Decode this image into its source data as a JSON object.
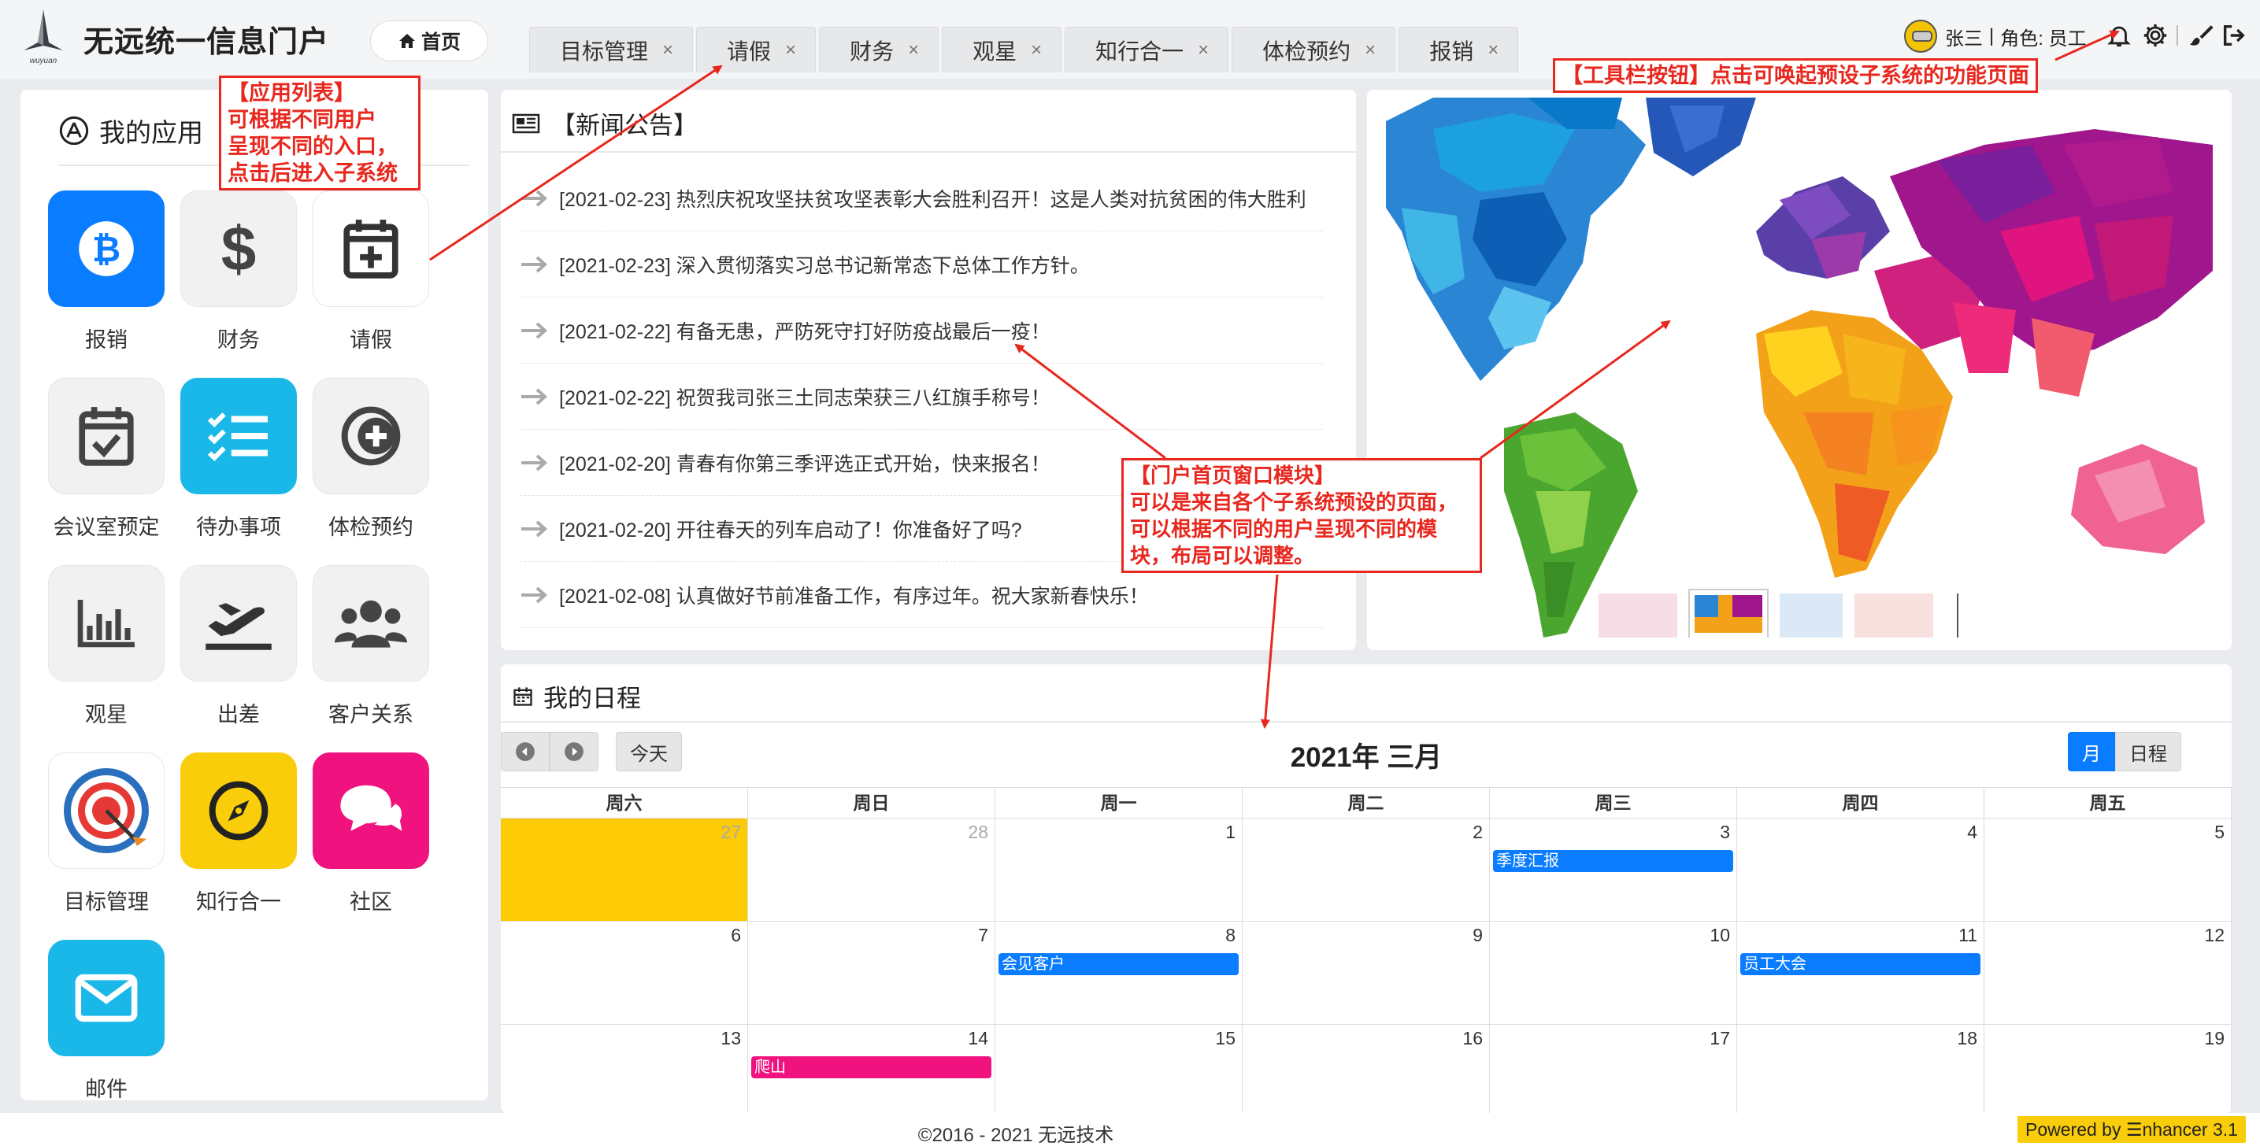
{
  "app": {
    "title": "无远统一信息门户",
    "logo_text": "wuyuan"
  },
  "home_button": {
    "label": "首页"
  },
  "tabs": [
    {
      "label": "目标管理"
    },
    {
      "label": "请假"
    },
    {
      "label": "财务"
    },
    {
      "label": "观星"
    },
    {
      "label": "知行合一"
    },
    {
      "label": "体检预约"
    },
    {
      "label": "报销"
    }
  ],
  "tab_close": "×",
  "user": {
    "name": "张三",
    "separator": "|",
    "role": "角色: 员工"
  },
  "toolbar_icons": [
    "bell-icon",
    "gear-icon",
    "brush-icon",
    "logout-icon"
  ],
  "apps_panel": {
    "title": "我的应用",
    "items": [
      {
        "label": "报销",
        "icon": "bitcoin-icon",
        "bg": "#0a7cff"
      },
      {
        "label": "财务",
        "icon": "dollar-icon",
        "bg": "#f1f1f1"
      },
      {
        "label": "请假",
        "icon": "calendar-plus-icon",
        "bg": "#ffffff"
      },
      {
        "label": "会议室预定",
        "icon": "calendar-check-icon",
        "bg": "#f1f1f1"
      },
      {
        "label": "待办事项",
        "icon": "checklist-icon",
        "bg": "#1ab8e8"
      },
      {
        "label": "体检预约",
        "icon": "medical-icon",
        "bg": "#f1f1f1"
      },
      {
        "label": "观星",
        "icon": "bar-chart-icon",
        "bg": "#f1f1f1"
      },
      {
        "label": "出差",
        "icon": "plane-icon",
        "bg": "#f1f1f1"
      },
      {
        "label": "客户关系",
        "icon": "users-icon",
        "bg": "#f1f1f1"
      },
      {
        "label": "目标管理",
        "icon": "target-icon",
        "bg": "#ffffff"
      },
      {
        "label": "知行合一",
        "icon": "compass-icon",
        "bg": "#f9cd0a"
      },
      {
        "label": "社区",
        "icon": "chat-icon",
        "bg": "#f0137f"
      },
      {
        "label": "邮件",
        "icon": "mail-icon",
        "bg": "#1ab8e8"
      }
    ]
  },
  "news": {
    "title": "【新闻公告】",
    "items": [
      "[2021-02-23] 热烈庆祝攻坚扶贫攻坚表彰大会胜利召开！这是人类对抗贫困的伟大胜利",
      "[2021-02-23] 深入贯彻落实习总书记新常态下总体工作方针。",
      "[2021-02-22] 有备无患，严防死守打好防疫战最后一疫！",
      "[2021-02-22] 祝贺我司张三土同志荣获三八红旗手称号！",
      "[2021-02-20] 青春有你第三季评选正式开始，快来报名！",
      "[2021-02-20] 开往春天的列车启动了！你准备好了吗?",
      "[2021-02-08] 认真做好节前准备工作，有序过年。祝大家新春快乐！"
    ]
  },
  "schedule": {
    "title": "我的日程",
    "today_label": "今天",
    "calendar_title": "2021年 三月",
    "view_month": "月",
    "view_agenda": "日程",
    "weekdays": [
      "周六",
      "周日",
      "周一",
      "周二",
      "周三",
      "周四",
      "周五"
    ],
    "weeks": [
      [
        {
          "d": "27",
          "other": true,
          "today": true
        },
        {
          "d": "28",
          "other": true
        },
        {
          "d": "1"
        },
        {
          "d": "2"
        },
        {
          "d": "3",
          "event": "季度汇报",
          "color": "#0a7cff"
        },
        {
          "d": "4"
        },
        {
          "d": "5"
        }
      ],
      [
        {
          "d": "6"
        },
        {
          "d": "7"
        },
        {
          "d": "8",
          "event": "会见客户",
          "color": "#0a7cff"
        },
        {
          "d": "9"
        },
        {
          "d": "10"
        },
        {
          "d": "11",
          "event": "员工大会",
          "color": "#0a7cff"
        },
        {
          "d": "12"
        }
      ],
      [
        {
          "d": "13"
        },
        {
          "d": "14",
          "event": "爬山",
          "color": "#f0137f"
        },
        {
          "d": "15"
        },
        {
          "d": "16"
        },
        {
          "d": "17"
        },
        {
          "d": "18"
        },
        {
          "d": "19"
        }
      ]
    ]
  },
  "footer": {
    "copyright": "©2016 - 2021 无远技术",
    "powered": "Powered by ☰nhancer 3.1"
  },
  "annotations": {
    "app_list": "【应用列表】\n可根据不同用户\n呈现不同的入口，\n点击后进入子系统",
    "toolbar": "【工具栏按钮】点击可唤起预设子系统的功能页面",
    "portal": "【门户首页窗口模块】\n可以是来自各个子系统预设的页面，\n可以根据不同的用户呈现不同的模\n块，布局可以调整。"
  },
  "colors": {
    "primary": "#0a7cff",
    "annotation": "#e8271e",
    "today": "#fccb05"
  }
}
